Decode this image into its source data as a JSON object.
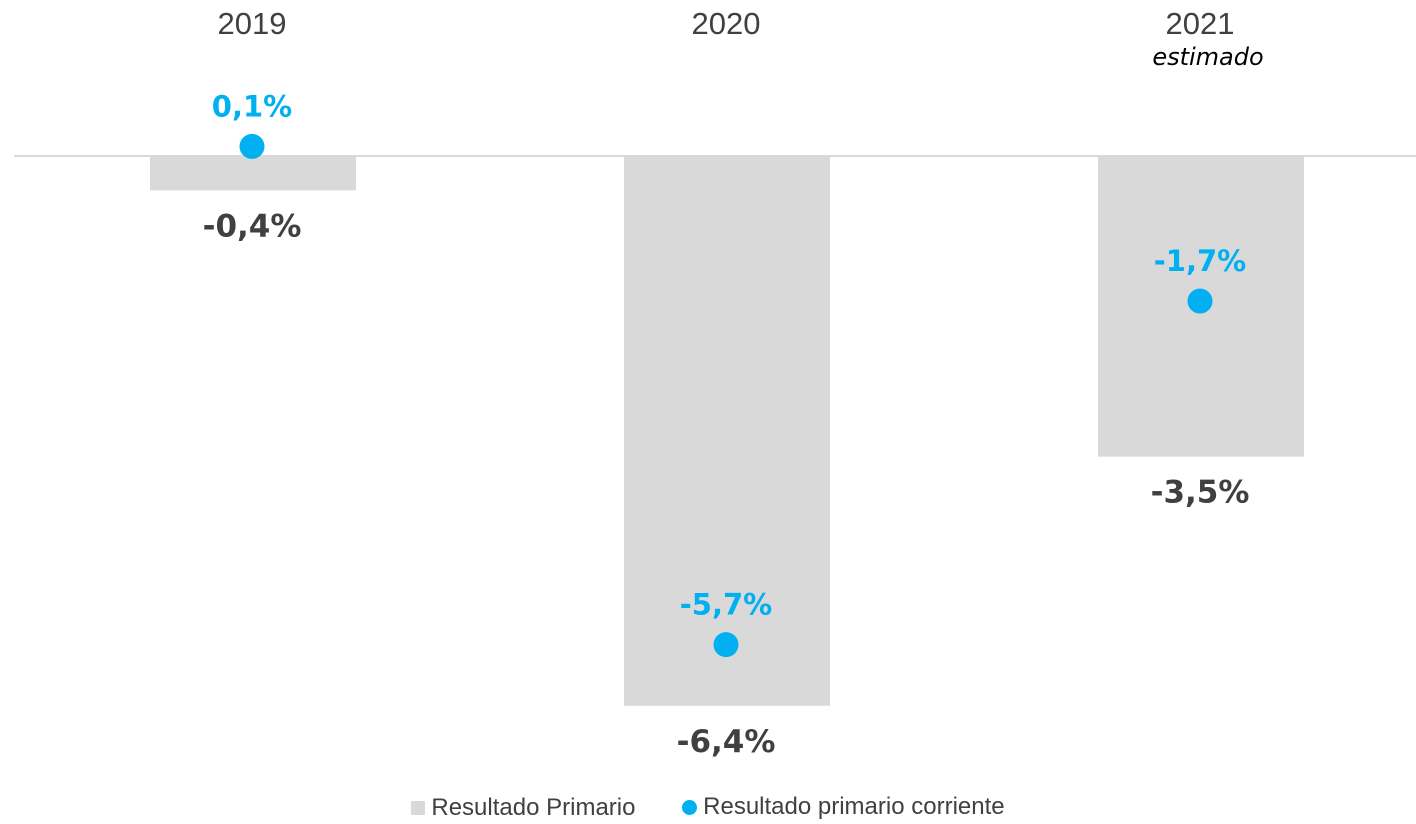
{
  "chart_data": {
    "type": "bar",
    "categories": [
      "2019",
      "2020",
      "2021"
    ],
    "category_sublabels": [
      "",
      "",
      "estimado"
    ],
    "series": [
      {
        "name": "Resultado Primario",
        "kind": "bar",
        "values": [
          -0.4,
          -6.4,
          -3.5
        ],
        "labels": [
          "-0,4%",
          "-6,4%",
          "-3,5%"
        ],
        "color": "#d9d9d9",
        "label_color": "#404040"
      },
      {
        "name": "Resultado primario corriente",
        "kind": "dot",
        "values": [
          0.1,
          -5.7,
          -1.7
        ],
        "labels": [
          "0,1%",
          "-5,7%",
          "-1,7%"
        ],
        "color": "#00b0f0"
      }
    ],
    "ylim": [
      -6.4,
      0.1
    ],
    "legend_position": "bottom",
    "grid": false
  }
}
